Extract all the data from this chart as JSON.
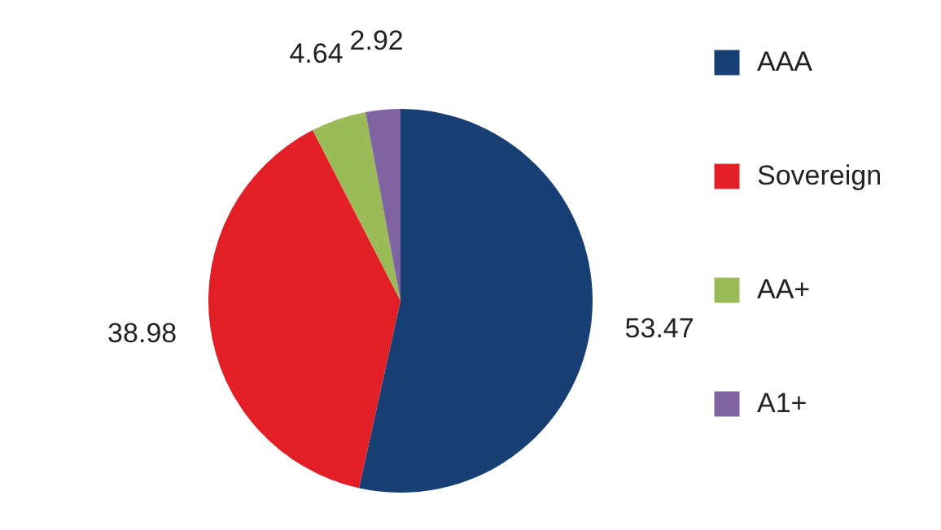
{
  "chart_data": {
    "type": "pie",
    "categories": [
      "AAA",
      "Sovereign",
      "AA+",
      "A1+"
    ],
    "values": [
      53.47,
      38.98,
      4.64,
      2.92
    ],
    "colors": [
      "#183f73",
      "#e21f26",
      "#9bbb59",
      "#8064a2"
    ],
    "data_labels": true,
    "legend": "right"
  }
}
